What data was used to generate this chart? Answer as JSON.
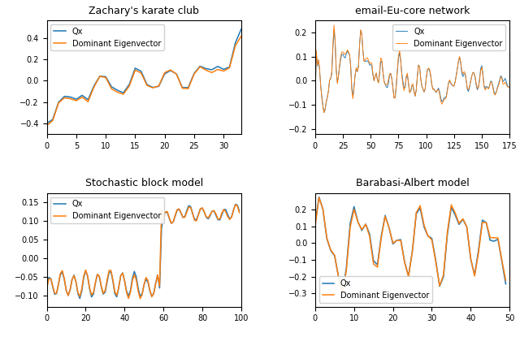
{
  "title1": "Zachary's karate club",
  "title2": "email-Eu-core network",
  "title3": "Stochastic block model",
  "title4": "Barabasi-Albert model",
  "legend_label_qx": "Qx",
  "legend_label_eig": "Dominant Eigenvector",
  "color_qx": "#1f77b4",
  "color_eig": "#ff7f0e",
  "seed": 0
}
